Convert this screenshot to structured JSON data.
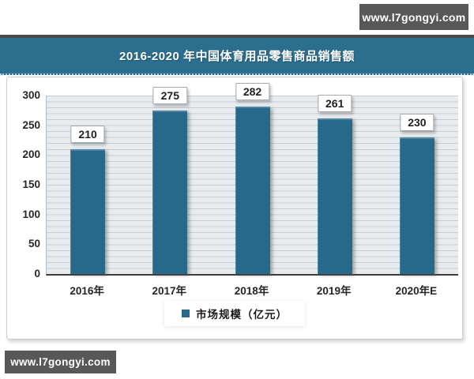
{
  "watermark": {
    "top": "www.l7gongyi.com",
    "bottom": "www.l7gongyi.com"
  },
  "header": {
    "title": "2016-2020 年中国体育用品零售商品销售额"
  },
  "colors": {
    "banner_teal": "#2b6e8d",
    "bar_teal": "#26698a",
    "badge_gray": "#585858",
    "plot_background": "#e8ecef",
    "gridline": "#c5cdd3",
    "axis": "#3c3c3c"
  },
  "chart_data": {
    "type": "bar",
    "title": "2016-2020 年中国体育用品零售商品销售额",
    "categories": [
      "2016年",
      "2017年",
      "2018年",
      "2019年",
      "2020年E"
    ],
    "values": [
      210,
      275,
      282,
      261,
      230
    ],
    "series_name": "市场规模（亿元）",
    "xlabel": "",
    "ylabel": "",
    "ylim": [
      0,
      300
    ],
    "ytick_step": 50,
    "yticks": [
      0,
      50,
      100,
      150,
      200,
      250,
      300
    ],
    "minor_grid_step": 10,
    "grid": true,
    "legend": [
      "市场规模（亿元）"
    ],
    "legend_position": "bottom",
    "data_labels": true
  }
}
